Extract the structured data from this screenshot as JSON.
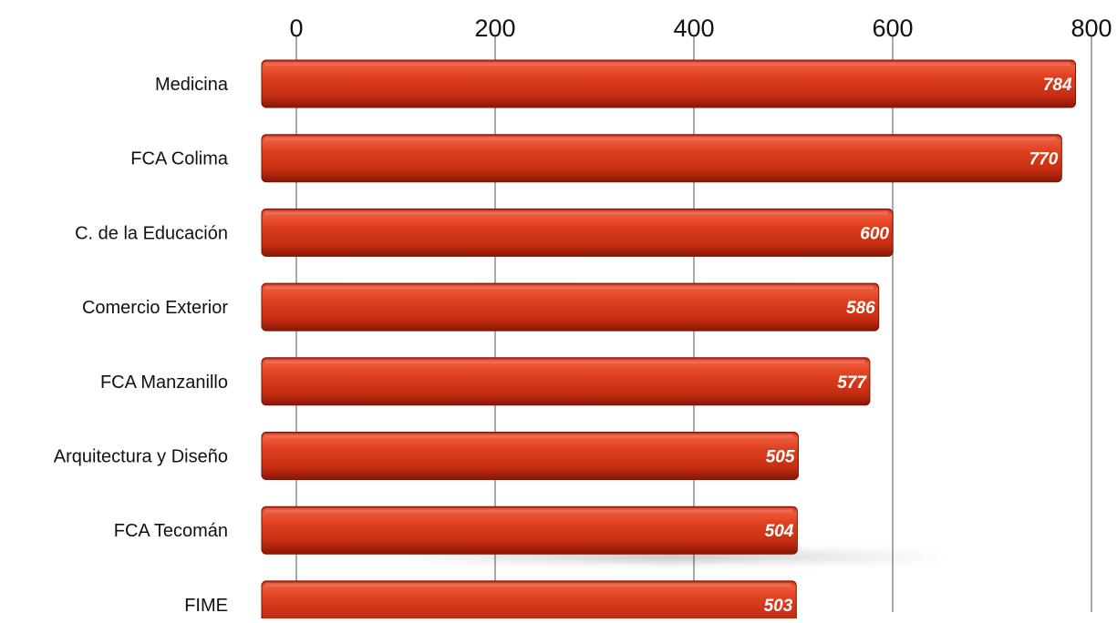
{
  "chart_data": {
    "type": "bar",
    "orientation": "horizontal",
    "title": "",
    "xlabel": "",
    "ylabel": "",
    "categories": [
      "Medicina",
      "FCA Colima",
      "C. de la Educación",
      "Comercio Exterior",
      "FCA Manzanillo",
      "Arquitectura y Diseño",
      "FCA Tecomán",
      "FIME"
    ],
    "values": [
      784,
      770,
      600,
      586,
      577,
      505,
      504,
      503
    ],
    "xlim": [
      0,
      800
    ],
    "x_ticks": [
      0,
      200,
      400,
      600,
      800
    ],
    "x_tick_labels": [
      "0",
      "200",
      "400",
      "600",
      "800"
    ],
    "x_axis_position": "top",
    "grid": true,
    "data_labels": true,
    "legend": "none",
    "bar_color": "#d8341a",
    "bar_color_dark": "#9e1a08",
    "label_color": "#ffffff"
  }
}
